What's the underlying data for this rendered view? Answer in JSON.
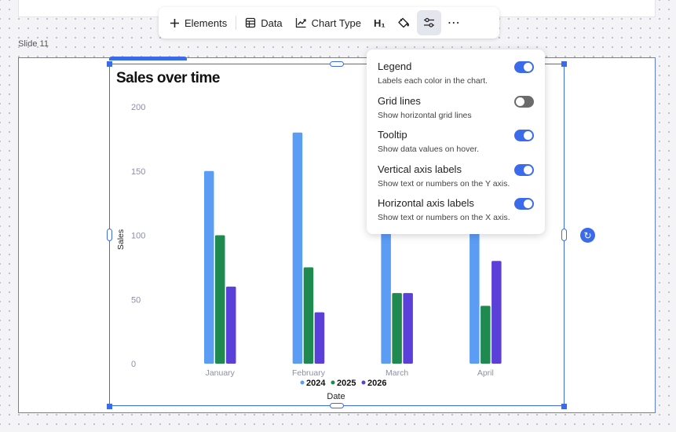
{
  "slide": {
    "label": "Slide 11"
  },
  "toolbar": {
    "elements_label": "Elements",
    "data_label": "Data",
    "chart_type_label": "Chart Type",
    "heading_icon": "H₁"
  },
  "settings_panel": {
    "options": [
      {
        "title": "Legend",
        "desc": "Labels each color in the chart.",
        "on": true
      },
      {
        "title": "Grid lines",
        "desc": "Show horizontal grid lines",
        "on": false
      },
      {
        "title": "Tooltip",
        "desc": "Show data values on hover.",
        "on": true
      },
      {
        "title": "Vertical axis labels",
        "desc": "Show text or numbers on the Y axis.",
        "on": true
      },
      {
        "title": "Horizontal axis labels",
        "desc": "Show text or numbers on the X axis.",
        "on": true
      }
    ]
  },
  "chart_data": {
    "type": "bar",
    "title": "Sales over time",
    "xlabel": "Date",
    "ylabel": "Sales",
    "ylim": [
      0,
      200
    ],
    "yticks": [
      0,
      50,
      100,
      150,
      200
    ],
    "grid": false,
    "legend_position": "bottom",
    "categories": [
      "January",
      "February",
      "March",
      "April"
    ],
    "series": [
      {
        "name": "2024",
        "color": "#5b9cf5",
        "values": [
          150,
          180,
          120,
          130
        ]
      },
      {
        "name": "2025",
        "color": "#1e8a50",
        "values": [
          100,
          75,
          55,
          45
        ]
      },
      {
        "name": "2026",
        "color": "#5b3fd9",
        "values": [
          60,
          40,
          55,
          80
        ]
      }
    ]
  }
}
